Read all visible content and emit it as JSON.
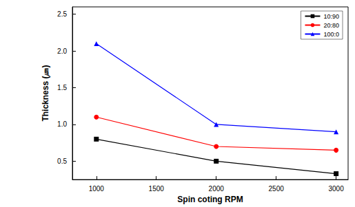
{
  "chart_data": {
    "type": "line",
    "x_label": "Spin coting RPM",
    "y_label": "Thickness (㎛)",
    "x": [
      1000,
      2000,
      3000
    ],
    "series": [
      {
        "name": "10:90",
        "color": "#000000",
        "marker": "square",
        "values": [
          0.8,
          0.5,
          0.33
        ]
      },
      {
        "name": "20:80",
        "color": "#ff0000",
        "marker": "circle",
        "values": [
          1.1,
          0.7,
          0.65
        ]
      },
      {
        "name": "100:0",
        "color": "#0000ff",
        "marker": "triangle",
        "values": [
          2.1,
          1.0,
          0.9
        ]
      }
    ],
    "xlim": [
      800,
      3100
    ],
    "xticks": [
      1000,
      1500,
      2000,
      2500,
      3000
    ],
    "ylim": [
      0.25,
      2.6
    ],
    "yticks": [
      {
        "value": 0.5,
        "label": "0.5"
      },
      {
        "value": 1.0,
        "label": "1.0"
      },
      {
        "value": 1.5,
        "label": "1.5"
      },
      {
        "value": 2.0,
        "label": "2.0"
      },
      {
        "value": 2.5,
        "label": "2.5"
      }
    ],
    "legend": "top-right",
    "grid": false
  }
}
